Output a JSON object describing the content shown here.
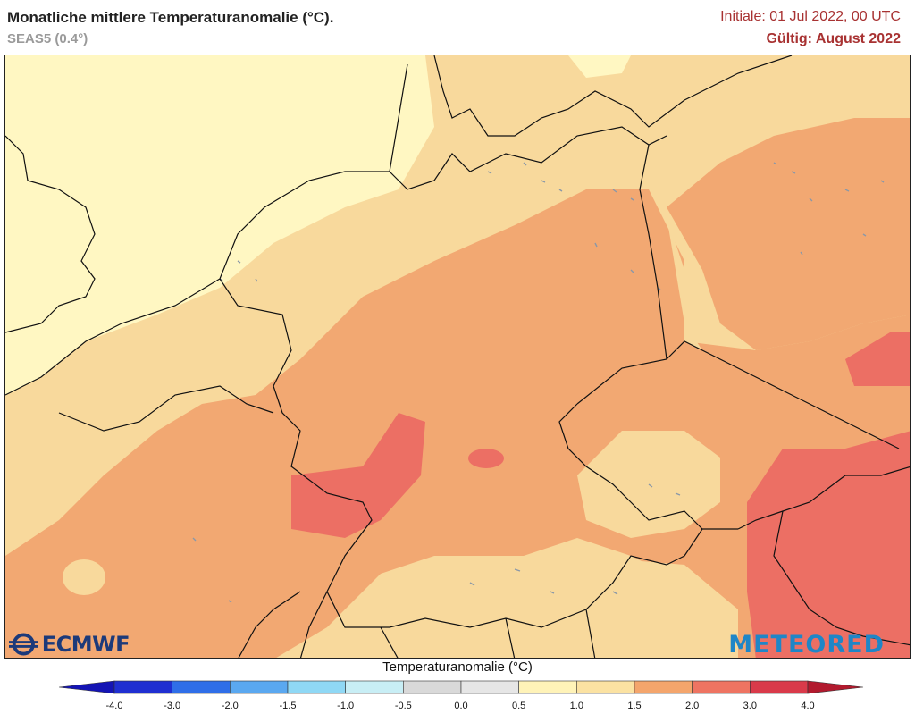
{
  "header": {
    "title": "Monatliche mittlere Temperaturanomalie (°C).",
    "model": "SEAS5 (0.4°)",
    "initial": "Initiale: 01 Jul 2022, 00 UTC",
    "valid": "Gültig: August 2022"
  },
  "colorbar": {
    "title": "Temperaturanomalie (°C)",
    "ticks": [
      "-4.0",
      "-3.0",
      "-2.0",
      "-1.5",
      "-1.0",
      "-0.5",
      "0.0",
      "0.5",
      "1.0",
      "1.5",
      "2.0",
      "3.0",
      "4.0"
    ],
    "colors": [
      "#1f2fd1",
      "#2f6ee8",
      "#5aa8f0",
      "#8fd8f5",
      "#c8eef5",
      "#d9d9d9",
      "#e6e6e6",
      "#fff3b8",
      "#fbe2a2",
      "#f4a56c",
      "#ee7462",
      "#d93a4a"
    ],
    "low_color": "#1414b4",
    "high_color": "#b21a2e"
  },
  "map": {
    "colors": {
      "anomaly_0_5_1_0": "#fff7c2",
      "anomaly_1_0_1_5": "#f8d99c",
      "anomaly_1_5_2_0": "#f2a872",
      "anomaly_2_0_3_0": "#ec6f64",
      "water": "#8a98a8",
      "borders": "#111111"
    }
  },
  "logos": {
    "left": "ECMWF",
    "right": "METEORED"
  }
}
